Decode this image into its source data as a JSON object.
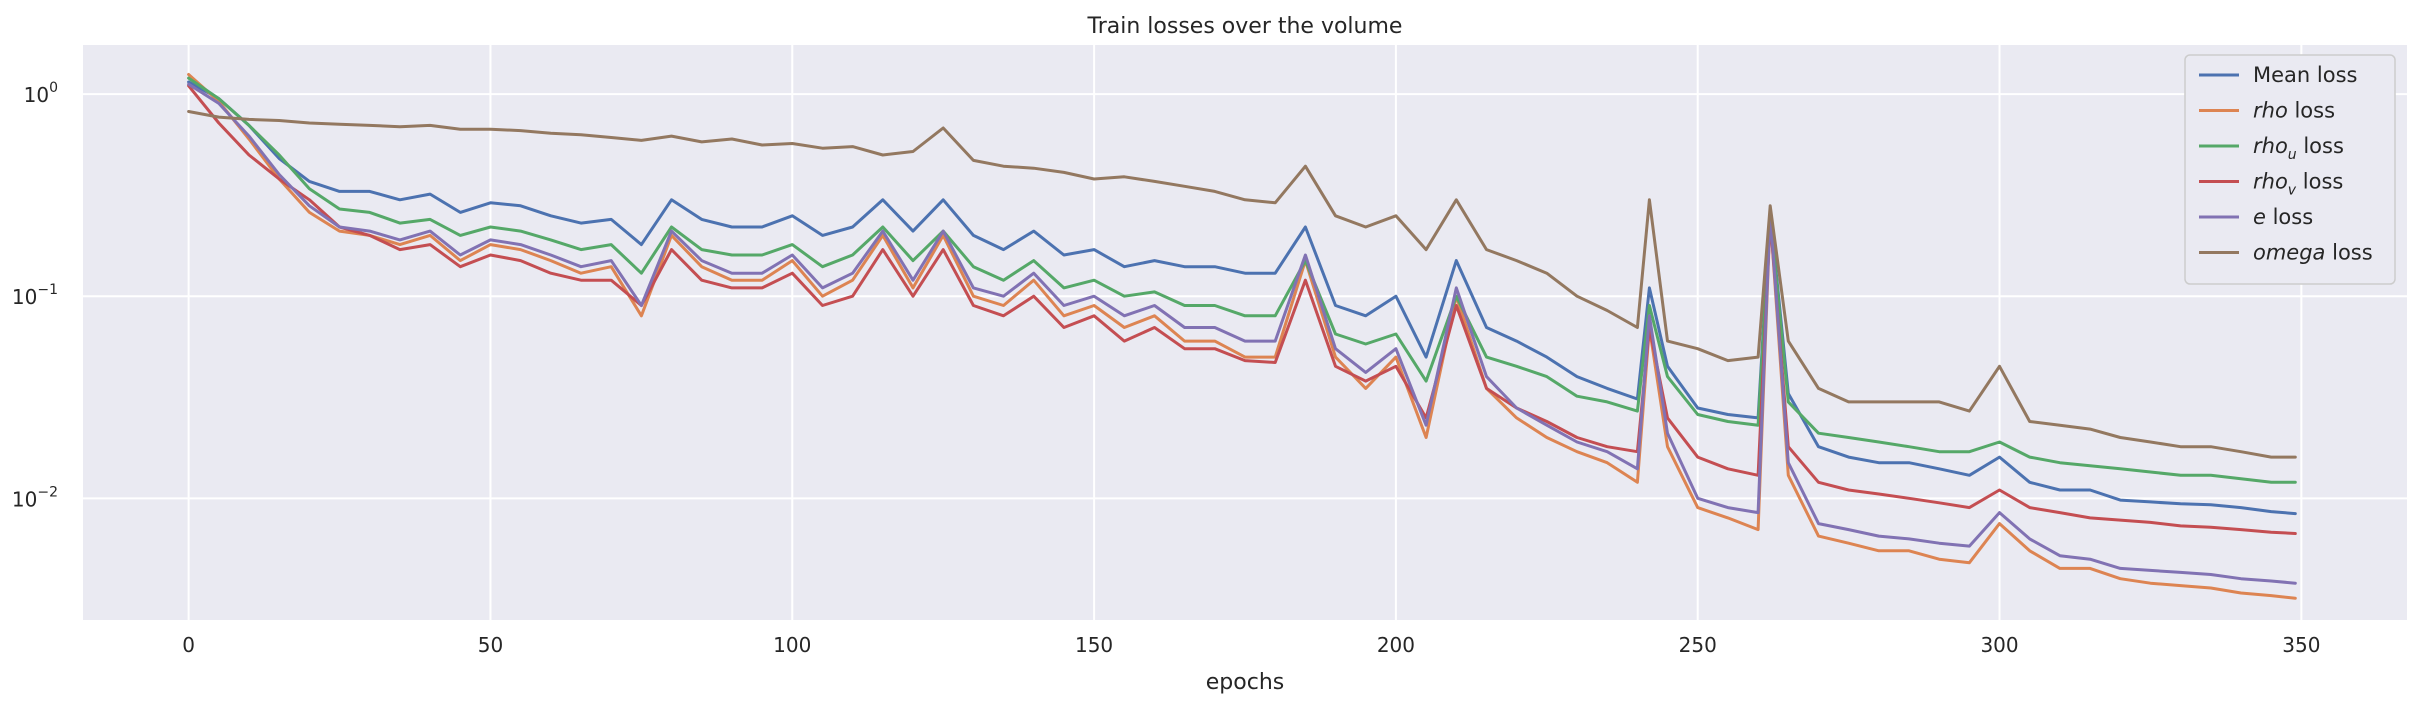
{
  "chart_data": {
    "type": "line",
    "title": "Train losses over the volume",
    "xlabel": "epochs",
    "ylabel": "",
    "yscale": "log",
    "xlim": [
      -17.5,
      367.5
    ],
    "ylim": [
      0.0025,
      1.75
    ],
    "xticks": [
      0,
      50,
      100,
      150,
      200,
      250,
      300,
      350
    ],
    "xtick_labels": [
      "0",
      "50",
      "100",
      "150",
      "200",
      "250",
      "300",
      "350"
    ],
    "yticks": [
      0.01,
      0.1,
      1
    ],
    "ytick_labels": [
      {
        "base": "10",
        "exp": "−2"
      },
      {
        "base": "10",
        "exp": "−1"
      },
      {
        "base": "10",
        "exp": "0"
      }
    ],
    "grid": true,
    "legend_position": "top-right",
    "background": "#eaeaf2",
    "series": [
      {
        "key": "mean",
        "color": "#4c72b0",
        "label_prefix": "Mean loss",
        "label_sub": "",
        "label_suffix": "",
        "italic": false,
        "x": [
          0,
          5,
          10,
          15,
          20,
          25,
          30,
          35,
          40,
          45,
          50,
          55,
          60,
          65,
          70,
          75,
          80,
          85,
          90,
          95,
          100,
          105,
          110,
          115,
          120,
          125,
          130,
          135,
          140,
          145,
          150,
          155,
          160,
          165,
          170,
          175,
          180,
          185,
          190,
          195,
          200,
          205,
          210,
          215,
          220,
          225,
          230,
          235,
          240,
          242,
          245,
          250,
          255,
          260,
          262,
          265,
          270,
          275,
          280,
          285,
          290,
          295,
          300,
          305,
          310,
          315,
          320,
          325,
          330,
          335,
          340,
          345,
          349
        ],
        "y": [
          1.15,
          0.95,
          0.7,
          0.48,
          0.37,
          0.33,
          0.33,
          0.3,
          0.32,
          0.26,
          0.29,
          0.28,
          0.25,
          0.23,
          0.24,
          0.18,
          0.3,
          0.24,
          0.22,
          0.22,
          0.25,
          0.2,
          0.22,
          0.3,
          0.21,
          0.3,
          0.2,
          0.17,
          0.21,
          0.16,
          0.17,
          0.14,
          0.15,
          0.14,
          0.14,
          0.13,
          0.13,
          0.22,
          0.09,
          0.08,
          0.1,
          0.05,
          0.15,
          0.07,
          0.06,
          0.05,
          0.04,
          0.035,
          0.031,
          0.11,
          0.045,
          0.028,
          0.026,
          0.025,
          0.26,
          0.033,
          0.018,
          0.016,
          0.015,
          0.015,
          0.014,
          0.013,
          0.016,
          0.012,
          0.011,
          0.011,
          0.0098,
          0.0096,
          0.0094,
          0.0093,
          0.009,
          0.0086,
          0.0084
        ]
      },
      {
        "key": "rho",
        "color": "#dd8452",
        "label_prefix": "rho",
        "label_sub": "",
        "label_suffix": " loss",
        "italic": true,
        "x": [
          0,
          5,
          10,
          15,
          20,
          25,
          30,
          35,
          40,
          45,
          50,
          55,
          60,
          65,
          70,
          75,
          80,
          85,
          90,
          95,
          100,
          105,
          110,
          115,
          120,
          125,
          130,
          135,
          140,
          145,
          150,
          155,
          160,
          165,
          170,
          175,
          180,
          185,
          190,
          195,
          200,
          205,
          210,
          215,
          220,
          225,
          230,
          235,
          240,
          242,
          245,
          250,
          255,
          260,
          262,
          265,
          270,
          275,
          280,
          285,
          290,
          295,
          300,
          305,
          310,
          315,
          320,
          325,
          330,
          335,
          340,
          345,
          349
        ],
        "y": [
          1.25,
          0.92,
          0.6,
          0.38,
          0.26,
          0.21,
          0.2,
          0.18,
          0.2,
          0.15,
          0.18,
          0.17,
          0.15,
          0.13,
          0.14,
          0.08,
          0.2,
          0.14,
          0.12,
          0.12,
          0.15,
          0.1,
          0.12,
          0.2,
          0.11,
          0.2,
          0.1,
          0.09,
          0.12,
          0.08,
          0.09,
          0.07,
          0.08,
          0.06,
          0.06,
          0.05,
          0.05,
          0.15,
          0.05,
          0.035,
          0.05,
          0.02,
          0.1,
          0.035,
          0.025,
          0.02,
          0.017,
          0.015,
          0.012,
          0.07,
          0.018,
          0.009,
          0.008,
          0.007,
          0.25,
          0.013,
          0.0065,
          0.006,
          0.0055,
          0.0055,
          0.005,
          0.0048,
          0.0075,
          0.0055,
          0.0045,
          0.0045,
          0.004,
          0.0038,
          0.0037,
          0.0036,
          0.0034,
          0.0033,
          0.0032
        ]
      },
      {
        "key": "rhou",
        "color": "#55a868",
        "label_prefix": "rho",
        "label_sub": "u",
        "label_suffix": " loss",
        "italic": true,
        "x": [
          0,
          5,
          10,
          15,
          20,
          25,
          30,
          35,
          40,
          45,
          50,
          55,
          60,
          65,
          70,
          75,
          80,
          85,
          90,
          95,
          100,
          105,
          110,
          115,
          120,
          125,
          130,
          135,
          140,
          145,
          150,
          155,
          160,
          165,
          170,
          175,
          180,
          185,
          190,
          195,
          200,
          205,
          210,
          215,
          220,
          225,
          230,
          235,
          240,
          242,
          245,
          250,
          255,
          260,
          262,
          265,
          270,
          275,
          280,
          285,
          290,
          295,
          300,
          305,
          310,
          315,
          320,
          325,
          330,
          335,
          340,
          345,
          349
        ],
        "y": [
          1.2,
          0.95,
          0.7,
          0.5,
          0.34,
          0.27,
          0.26,
          0.23,
          0.24,
          0.2,
          0.22,
          0.21,
          0.19,
          0.17,
          0.18,
          0.13,
          0.22,
          0.17,
          0.16,
          0.16,
          0.18,
          0.14,
          0.16,
          0.22,
          0.15,
          0.21,
          0.14,
          0.12,
          0.15,
          0.11,
          0.12,
          0.1,
          0.105,
          0.09,
          0.09,
          0.08,
          0.08,
          0.15,
          0.065,
          0.058,
          0.065,
          0.038,
          0.1,
          0.05,
          0.045,
          0.04,
          0.032,
          0.03,
          0.027,
          0.09,
          0.04,
          0.026,
          0.024,
          0.023,
          0.25,
          0.03,
          0.021,
          0.02,
          0.019,
          0.018,
          0.017,
          0.017,
          0.019,
          0.016,
          0.015,
          0.0145,
          0.014,
          0.0135,
          0.013,
          0.013,
          0.0125,
          0.012,
          0.012
        ]
      },
      {
        "key": "rhov",
        "color": "#c44e52",
        "label_prefix": "rho",
        "label_sub": "v",
        "label_suffix": " loss",
        "italic": true,
        "x": [
          0,
          5,
          10,
          15,
          20,
          25,
          30,
          35,
          40,
          45,
          50,
          55,
          60,
          65,
          70,
          75,
          80,
          85,
          90,
          95,
          100,
          105,
          110,
          115,
          120,
          125,
          130,
          135,
          140,
          145,
          150,
          155,
          160,
          165,
          170,
          175,
          180,
          185,
          190,
          195,
          200,
          205,
          210,
          215,
          220,
          225,
          230,
          235,
          240,
          242,
          245,
          250,
          255,
          260,
          262,
          265,
          270,
          275,
          280,
          285,
          290,
          295,
          300,
          305,
          310,
          315,
          320,
          325,
          330,
          335,
          340,
          345,
          349
        ],
        "y": [
          1.1,
          0.72,
          0.5,
          0.38,
          0.3,
          0.22,
          0.2,
          0.17,
          0.18,
          0.14,
          0.16,
          0.15,
          0.13,
          0.12,
          0.12,
          0.09,
          0.17,
          0.12,
          0.11,
          0.11,
          0.13,
          0.09,
          0.1,
          0.17,
          0.1,
          0.17,
          0.09,
          0.08,
          0.1,
          0.07,
          0.08,
          0.06,
          0.07,
          0.055,
          0.055,
          0.048,
          0.047,
          0.12,
          0.045,
          0.038,
          0.045,
          0.025,
          0.09,
          0.035,
          0.028,
          0.024,
          0.02,
          0.018,
          0.017,
          0.07,
          0.025,
          0.016,
          0.014,
          0.013,
          0.24,
          0.018,
          0.012,
          0.011,
          0.0105,
          0.01,
          0.0095,
          0.009,
          0.011,
          0.009,
          0.0085,
          0.008,
          0.0078,
          0.0076,
          0.0073,
          0.0072,
          0.007,
          0.0068,
          0.0067
        ]
      },
      {
        "key": "e",
        "color": "#8172b3",
        "label_prefix": "e",
        "label_sub": "",
        "label_suffix": " loss",
        "italic": true,
        "x": [
          0,
          5,
          10,
          15,
          20,
          25,
          30,
          35,
          40,
          45,
          50,
          55,
          60,
          65,
          70,
          75,
          80,
          85,
          90,
          95,
          100,
          105,
          110,
          115,
          120,
          125,
          130,
          135,
          140,
          145,
          150,
          155,
          160,
          165,
          170,
          175,
          180,
          185,
          190,
          195,
          200,
          205,
          210,
          215,
          220,
          225,
          230,
          235,
          240,
          242,
          245,
          250,
          255,
          260,
          262,
          265,
          270,
          275,
          280,
          285,
          290,
          295,
          300,
          305,
          310,
          315,
          320,
          325,
          330,
          335,
          340,
          345,
          349
        ],
        "y": [
          1.12,
          0.9,
          0.62,
          0.4,
          0.28,
          0.22,
          0.21,
          0.19,
          0.21,
          0.16,
          0.19,
          0.18,
          0.16,
          0.14,
          0.15,
          0.09,
          0.21,
          0.15,
          0.13,
          0.13,
          0.16,
          0.11,
          0.13,
          0.21,
          0.12,
          0.21,
          0.11,
          0.1,
          0.13,
          0.09,
          0.1,
          0.08,
          0.09,
          0.07,
          0.07,
          0.06,
          0.06,
          0.16,
          0.055,
          0.042,
          0.055,
          0.023,
          0.11,
          0.04,
          0.028,
          0.023,
          0.019,
          0.017,
          0.014,
          0.08,
          0.021,
          0.01,
          0.009,
          0.0085,
          0.26,
          0.015,
          0.0075,
          0.007,
          0.0065,
          0.0063,
          0.006,
          0.0058,
          0.0085,
          0.0063,
          0.0052,
          0.005,
          0.0045,
          0.0044,
          0.0043,
          0.0042,
          0.004,
          0.0039,
          0.0038
        ]
      },
      {
        "key": "omega",
        "color": "#937860",
        "label_prefix": "omega",
        "label_sub": "",
        "label_suffix": " loss",
        "italic": true,
        "x": [
          0,
          5,
          10,
          15,
          20,
          25,
          30,
          35,
          40,
          45,
          50,
          55,
          60,
          65,
          70,
          75,
          80,
          85,
          90,
          95,
          100,
          105,
          110,
          115,
          120,
          125,
          130,
          135,
          140,
          145,
          150,
          155,
          160,
          165,
          170,
          175,
          180,
          185,
          190,
          195,
          200,
          205,
          210,
          215,
          220,
          225,
          230,
          235,
          240,
          242,
          245,
          250,
          255,
          260,
          262,
          265,
          270,
          275,
          280,
          285,
          290,
          295,
          300,
          305,
          310,
          315,
          320,
          325,
          330,
          335,
          340,
          345,
          349
        ],
        "y": [
          0.82,
          0.77,
          0.75,
          0.74,
          0.72,
          0.71,
          0.7,
          0.69,
          0.7,
          0.67,
          0.67,
          0.66,
          0.64,
          0.63,
          0.61,
          0.59,
          0.62,
          0.58,
          0.6,
          0.56,
          0.57,
          0.54,
          0.55,
          0.5,
          0.52,
          0.68,
          0.47,
          0.44,
          0.43,
          0.41,
          0.38,
          0.39,
          0.37,
          0.35,
          0.33,
          0.3,
          0.29,
          0.44,
          0.25,
          0.22,
          0.25,
          0.17,
          0.3,
          0.17,
          0.15,
          0.13,
          0.1,
          0.085,
          0.07,
          0.3,
          0.06,
          0.055,
          0.048,
          0.05,
          0.28,
          0.06,
          0.035,
          0.03,
          0.03,
          0.03,
          0.03,
          0.027,
          0.045,
          0.024,
          0.023,
          0.022,
          0.02,
          0.019,
          0.018,
          0.018,
          0.017,
          0.016,
          0.016
        ]
      }
    ]
  }
}
